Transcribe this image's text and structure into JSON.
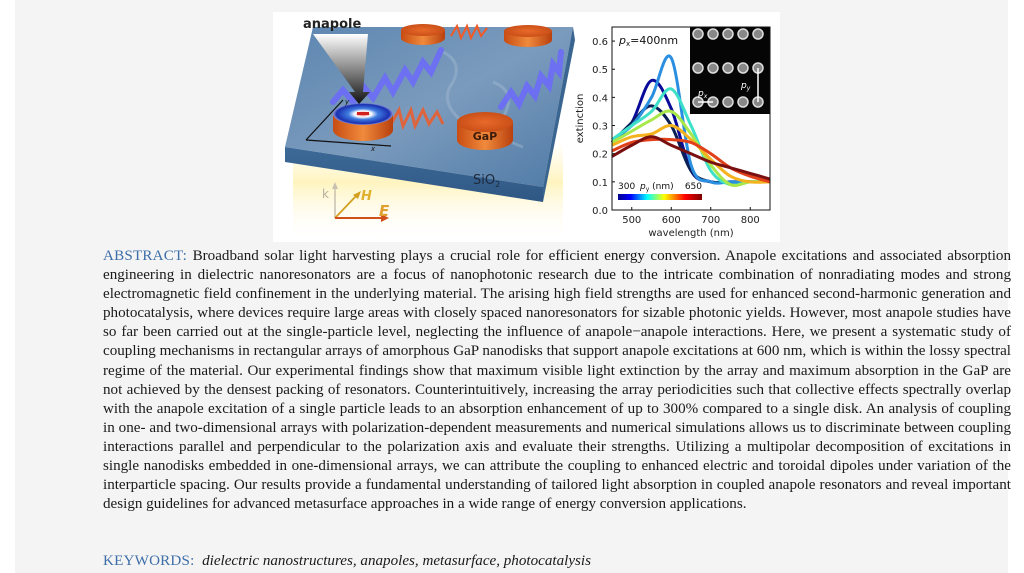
{
  "figure": {
    "scene": {
      "labels": {
        "anapole": "anapole",
        "disk_material": "GaP",
        "substrate": "SiO",
        "substrate_sub": "2",
        "axis_x": "x",
        "axis_y": "y",
        "wave_k": "k",
        "wave_h": "H",
        "wave_e": "E"
      }
    }
  },
  "chart_data": {
    "type": "line",
    "title": "",
    "annotation": "pₓ=400nm",
    "annotation_main": "p",
    "annotation_sub": "x",
    "annotation_rest": "=400nm",
    "xlabel": "wavelength (nm)",
    "ylabel": "extinction",
    "xlim": [
      450,
      850
    ],
    "ylim": [
      0.0,
      0.65
    ],
    "xticks": [
      500,
      600,
      700,
      800
    ],
    "yticks": [
      0.0,
      0.1,
      0.2,
      0.3,
      0.4,
      0.5,
      0.6
    ],
    "ytick_labels": [
      "0.0",
      "0.1",
      "0.2",
      "0.3",
      "0.4",
      "0.5",
      "0.6"
    ],
    "colorbar": {
      "label_min": "300",
      "label_max": "650",
      "label_var": "p",
      "label_var_sub": "y",
      "label_unit": "(nm)",
      "colormap": "jet"
    },
    "inset": {
      "description": "SEM image of nanodisk array",
      "label_px": "p",
      "label_px_sub": "x",
      "label_py": "p",
      "label_py_sub": "y"
    },
    "x": [
      450,
      500,
      550,
      600,
      650,
      700,
      750,
      800,
      850
    ],
    "series": [
      {
        "name": "py=300nm",
        "color": "#0a0a9a",
        "values": [
          0.24,
          0.31,
          0.46,
          0.36,
          0.14,
          0.1,
          0.1,
          0.1,
          0.1
        ]
      },
      {
        "name": "py=350nm",
        "color": "#0a1f55",
        "values": [
          0.24,
          0.31,
          0.37,
          0.3,
          0.14,
          0.1,
          0.1,
          0.1,
          0.1
        ]
      },
      {
        "name": "py=400nm",
        "color": "#2a8fe0",
        "values": [
          0.25,
          0.3,
          0.4,
          0.54,
          0.16,
          0.1,
          0.1,
          0.1,
          0.1
        ]
      },
      {
        "name": "py=450nm",
        "color": "#3fe0c8",
        "values": [
          0.25,
          0.3,
          0.35,
          0.43,
          0.3,
          0.14,
          0.09,
          0.1,
          0.1
        ]
      },
      {
        "name": "py=500nm",
        "color": "#a8e84a",
        "values": [
          0.24,
          0.28,
          0.32,
          0.35,
          0.27,
          0.16,
          0.09,
          0.1,
          0.1
        ]
      },
      {
        "name": "py=550nm",
        "color": "#f4b21e",
        "values": [
          0.23,
          0.26,
          0.27,
          0.3,
          0.25,
          0.18,
          0.12,
          0.1,
          0.1
        ]
      },
      {
        "name": "py=600nm",
        "color": "#e0401a",
        "values": [
          0.21,
          0.24,
          0.25,
          0.25,
          0.24,
          0.2,
          0.15,
          0.12,
          0.1
        ]
      },
      {
        "name": "py=650nm",
        "color": "#7a0f0f",
        "values": [
          0.19,
          0.23,
          0.26,
          0.23,
          0.2,
          0.17,
          0.15,
          0.13,
          0.11
        ]
      }
    ]
  },
  "abstract": {
    "label": "ABSTRACT:",
    "text": "Broadband solar light harvesting plays a crucial role for efficient energy conversion. Anapole excitations and associated absorption engineering in dielectric nanoresonators are a focus of nanophotonic research due to the intricate combination of nonradiating modes and strong electromagnetic field confinement in the underlying material. The arising high field strengths are used for enhanced second-harmonic generation and photocatalysis, where devices require large areas with closely spaced nanoresonators for sizable photonic yields. However, most anapole studies have so far been carried out at the single-particle level, neglecting the influence of anapole−anapole interactions. Here, we present a systematic study of coupling mechanisms in rectangular arrays of amorphous GaP nanodisks that support anapole excitations at 600 nm, which is within the lossy spectral regime of the material. Our experimental findings show that maximum visible light extinction by the array and maximum absorption in the GaP are not achieved by the densest packing of resonators. Counterintuitively, increasing the array periodicities such that collective effects spectrally overlap with the anapole excitation of a single particle leads to an absorption enhancement of up to 300% compared to a single disk. An analysis of coupling in one- and two-dimensional arrays with polarization-dependent measurements and numerical simulations allows us to discriminate between coupling interactions parallel and perpendicular to the polarization axis and evaluate their strengths. Utilizing a multipolar decomposition of excitations in single nanodisks embedded in one-dimensional arrays, we can attribute the coupling to enhanced electric and toroidal dipoles under variation of the interparticle spacing. Our results provide a fundamental understanding of tailored light absorption in coupled anapole resonators and reveal important design guidelines for advanced metasurface approaches in a wide range of energy conversion applications."
  },
  "keywords": {
    "label": "KEYWORDS:",
    "text": "dielectric nanostructures, anapoles, metasurface, photocatalysis"
  },
  "colors": {
    "panel_bg": "#f4f4f4",
    "label_blue": "#3d6ea8",
    "text": "#1a1a1a"
  }
}
